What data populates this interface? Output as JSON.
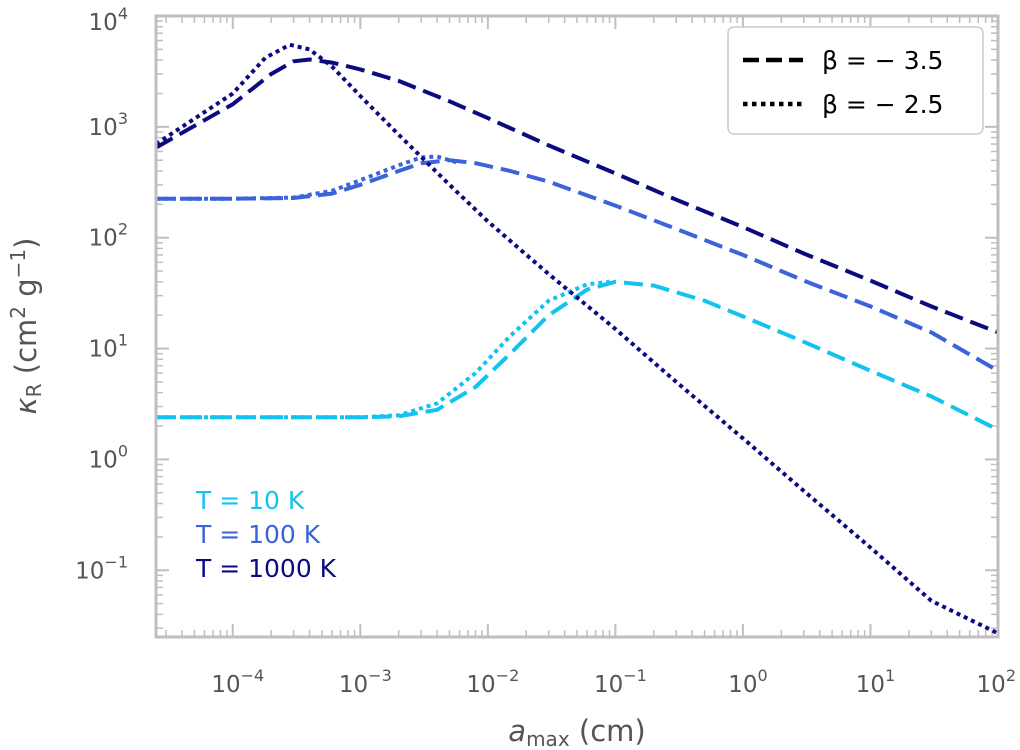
{
  "chart_data": {
    "type": "line",
    "xscale": "log",
    "yscale": "log",
    "xlim": [
      2.5e-05,
      100
    ],
    "ylim": [
      0.025,
      10000
    ],
    "xlabel": "a_max (cm)",
    "ylabel": "κ_R (cm^2 g^-1)",
    "x_ticks": [
      {
        "base": "10",
        "exp": "−4",
        "value": 0.0001
      },
      {
        "base": "10",
        "exp": "−3",
        "value": 0.001
      },
      {
        "base": "10",
        "exp": "−2",
        "value": 0.01
      },
      {
        "base": "10",
        "exp": "−1",
        "value": 0.1
      },
      {
        "base": "10",
        "exp": "0",
        "value": 1
      },
      {
        "base": "10",
        "exp": "1",
        "value": 10
      },
      {
        "base": "10",
        "exp": "2",
        "value": 100
      }
    ],
    "y_ticks": [
      {
        "base": "10",
        "exp": "−1",
        "value": 0.1
      },
      {
        "base": "10",
        "exp": "0",
        "value": 1
      },
      {
        "base": "10",
        "exp": "1",
        "value": 10
      },
      {
        "base": "10",
        "exp": "2",
        "value": 100
      },
      {
        "base": "10",
        "exp": "3",
        "value": 1000
      },
      {
        "base": "10",
        "exp": "4",
        "value": 10000
      }
    ],
    "legend": {
      "placement": "top-right",
      "entries": [
        {
          "label": "β = − 3.5",
          "linestyle": "dashed"
        },
        {
          "label": "β = − 2.5",
          "linestyle": "dotted"
        }
      ]
    },
    "annotations": [
      {
        "text": "T = 10 K",
        "color": "#12c3f0"
      },
      {
        "text": "T = 100 K",
        "color": "#3c64da"
      },
      {
        "text": "T = 1000 K",
        "color": "#0b0b80"
      }
    ],
    "series": [
      {
        "name": "T = 10 K, β = −3.5",
        "temperature": "10 K",
        "beta": -3.5,
        "linestyle": "dashed",
        "color": "#12c3f0",
        "x": [
          2.5e-05,
          0.0001,
          0.0005,
          0.001,
          0.002,
          0.004,
          0.008,
          0.015,
          0.03,
          0.06,
          0.1,
          0.2,
          0.5,
          1,
          3,
          10,
          30,
          100
        ],
        "y": [
          2.4,
          2.4,
          2.4,
          2.4,
          2.45,
          2.8,
          4.5,
          9,
          20,
          34,
          40,
          37,
          27,
          19.5,
          11.5,
          6.3,
          3.7,
          1.85
        ]
      },
      {
        "name": "T = 10 K, β = −2.5",
        "temperature": "10 K",
        "beta": -2.5,
        "linestyle": "dotted",
        "color": "#12c3f0",
        "x": [
          2.5e-05,
          0.0001,
          0.0005,
          0.001,
          0.002,
          0.004,
          0.008,
          0.015,
          0.03,
          0.06,
          0.09
        ],
        "y": [
          2.4,
          2.4,
          2.4,
          2.4,
          2.5,
          3.2,
          6,
          13,
          27,
          38,
          40
        ]
      },
      {
        "name": "T = 100 K, β = −3.5",
        "temperature": "100 K",
        "beta": -3.5,
        "linestyle": "dashed",
        "color": "#3c64da",
        "x": [
          2.5e-05,
          0.0001,
          0.0003,
          0.0006,
          0.001,
          0.002,
          0.003,
          0.005,
          0.008,
          0.015,
          0.03,
          0.1,
          0.3,
          1,
          3,
          10,
          30,
          100
        ],
        "y": [
          225,
          225,
          228,
          250,
          300,
          400,
          470,
          500,
          470,
          400,
          320,
          195,
          120,
          70,
          41,
          24,
          14,
          6.3
        ]
      },
      {
        "name": "T = 100 K, β = −2.5",
        "temperature": "100 K",
        "beta": -2.5,
        "linestyle": "dotted",
        "color": "#3c64da",
        "x": [
          2.5e-05,
          0.0001,
          0.0003,
          0.0006,
          0.001,
          0.002,
          0.003,
          0.004,
          0.006
        ],
        "y": [
          225,
          225,
          230,
          265,
          330,
          450,
          530,
          540,
          470
        ]
      },
      {
        "name": "T = 1000 K, β = −3.5",
        "temperature": "1000 K",
        "beta": -3.5,
        "linestyle": "dashed",
        "color": "#0b0b80",
        "x": [
          2.5e-05,
          0.0001,
          0.0002,
          0.0003,
          0.0004,
          0.0006,
          0.001,
          0.002,
          0.005,
          0.01,
          0.03,
          0.1,
          0.3,
          1,
          3,
          10,
          30,
          100
        ],
        "y": [
          650,
          1600,
          3000,
          3900,
          4050,
          3800,
          3300,
          2600,
          1700,
          1200,
          680,
          380,
          220,
          125,
          72,
          41,
          24,
          14
        ]
      },
      {
        "name": "T = 1000 K, β = −2.5",
        "temperature": "1000 K",
        "beta": -2.5,
        "linestyle": "dotted",
        "color": "#0b0b80",
        "x": [
          2.5e-05,
          0.0001,
          0.00018,
          0.00028,
          0.0004,
          0.0006,
          0.001,
          0.002,
          0.005,
          0.01,
          0.03,
          0.1,
          0.3,
          1,
          3,
          10,
          30,
          100
        ],
        "y": [
          700,
          2000,
          4200,
          5500,
          5000,
          3500,
          1900,
          850,
          300,
          140,
          47,
          15,
          5,
          1.55,
          0.52,
          0.16,
          0.053,
          0.027
        ]
      }
    ]
  }
}
